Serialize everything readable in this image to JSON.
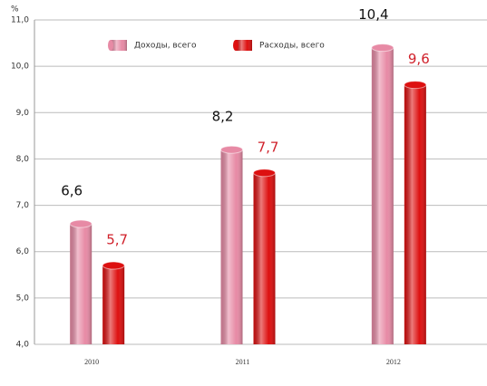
{
  "chart_data": {
    "type": "bar",
    "unit": "%",
    "categories": [
      "2010",
      "2011",
      "2012"
    ],
    "series": [
      {
        "name": "Доходы, всего",
        "color": "#e78aa5",
        "values": [
          6.6,
          8.2,
          10.4
        ],
        "value_labels": [
          "6,6",
          "8,2",
          "10,4"
        ],
        "label_color": "#111111"
      },
      {
        "name": "Расходы, всего",
        "color": "#dd1010",
        "values": [
          5.7,
          7.7,
          9.6
        ],
        "value_labels": [
          "5,7",
          "7,7",
          "9,6"
        ],
        "label_color": "#d0202a"
      }
    ],
    "ylim": [
      4.0,
      11.0
    ],
    "yticks": [
      {
        "value": 4.0,
        "label": "4,0"
      },
      {
        "value": 5.0,
        "label": "5,0"
      },
      {
        "value": 6.0,
        "label": "6,0"
      },
      {
        "value": 7.0,
        "label": "7,0"
      },
      {
        "value": 8.0,
        "label": "8,0"
      },
      {
        "value": 9.0,
        "label": "9,0"
      },
      {
        "value": 10.0,
        "label": "10,0"
      },
      {
        "value": 11.0,
        "label": "11,0"
      }
    ],
    "grid": true,
    "legend": "top"
  }
}
